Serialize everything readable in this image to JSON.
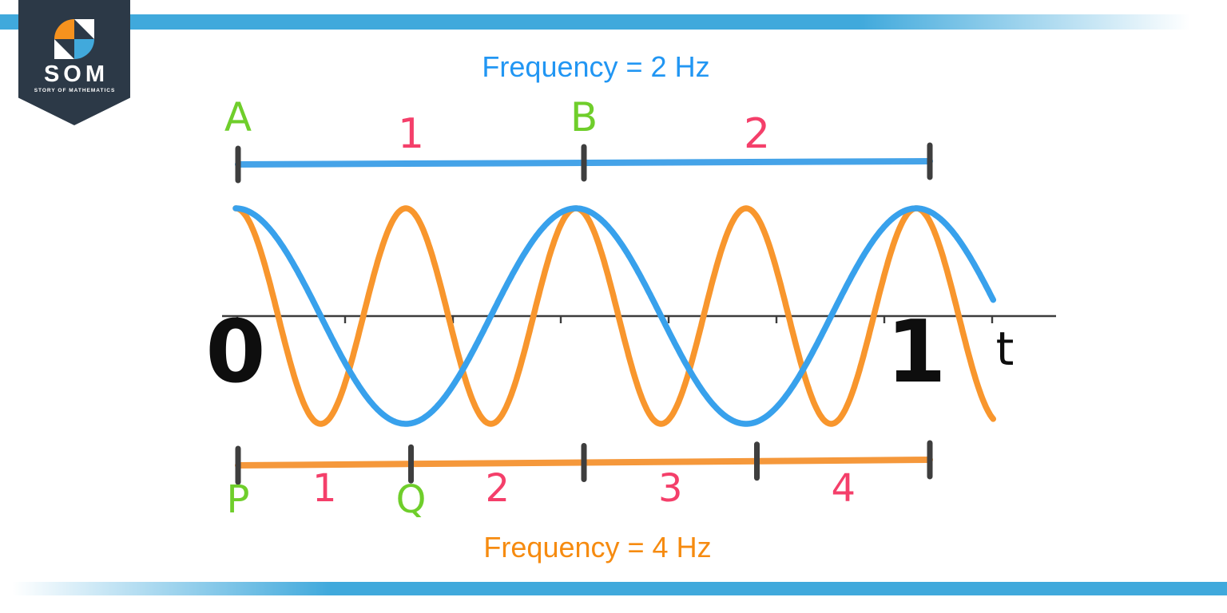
{
  "branding": {
    "logo_title": "SOM",
    "logo_subtitle": "STORY OF MATHEMATICS",
    "badge_color": "#2C3947",
    "pinwheel_orange": "#F6921E",
    "pinwheel_blue": "#41A9DC"
  },
  "decor": {
    "stripe_color": "#40A9DC"
  },
  "chart_data": {
    "type": "line",
    "title_top": "Frequency = 2 Hz",
    "title_top_color": "#2196F3",
    "title_bottom": "Frequency = 4 Hz",
    "title_bottom_color": "#F68B10",
    "xlabel": "t",
    "x_range": [
      0,
      1
    ],
    "x_extend_to": 1.114,
    "amplitude": 1,
    "grid": false,
    "axis_labels": [
      {
        "text": "0",
        "t": 0
      },
      {
        "text": "1",
        "t": 1
      }
    ],
    "axis_minor_tick_count": 8,
    "series": [
      {
        "name": "2 Hz cosine wave",
        "frequency_hz": 2,
        "waveform": "cos",
        "amplitude": 1,
        "color": "#38A1EC"
      },
      {
        "name": "4 Hz cosine wave",
        "frequency_hz": 4,
        "waveform": "cos",
        "amplitude": 1,
        "color": "#F8962D"
      }
    ],
    "rulers": [
      {
        "id": "2hz",
        "position": "above-wave",
        "color": "#45A3E8",
        "point_labels": [
          {
            "text": "A",
            "tick": 0
          },
          {
            "text": "B",
            "tick": 1
          }
        ],
        "segment_labels": [
          "1",
          "2"
        ]
      },
      {
        "id": "4hz",
        "position": "below-wave",
        "color": "#F5983B",
        "point_labels": [
          {
            "text": "P",
            "tick": 0
          },
          {
            "text": "Q",
            "tick": 1
          }
        ],
        "segment_labels": [
          "1",
          "2",
          "3",
          "4"
        ]
      }
    ],
    "colors": {
      "point_label": "#6FCE2B",
      "segment_label": "#F43F6A",
      "tick": "#3E3E3E",
      "axis": "#3C3C3C",
      "axis_label": "#0E0E0E"
    }
  }
}
